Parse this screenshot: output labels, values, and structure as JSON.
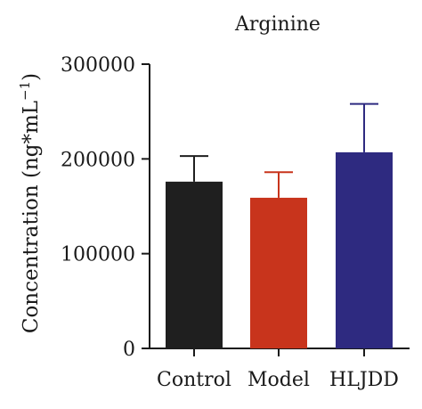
{
  "chart_data": {
    "type": "bar",
    "title": "Arginine",
    "ylabel": "Concentration (ng*mL",
    "ylabel_sup": "−1",
    "ylabel_close": ")",
    "categories": [
      "Control",
      "Model",
      "HLJDD"
    ],
    "values": [
      176000,
      159000,
      207000
    ],
    "errors": [
      27000,
      27000,
      51000
    ],
    "ylim": [
      0,
      300000
    ],
    "yticks": [
      0,
      100000,
      200000,
      300000
    ],
    "ytick_labels": [
      "0",
      "100000",
      "200000",
      "300000"
    ],
    "colors": [
      "#1f1f1f",
      "#c8341c",
      "#2e2a80"
    ],
    "grid": false,
    "legend": "none"
  }
}
